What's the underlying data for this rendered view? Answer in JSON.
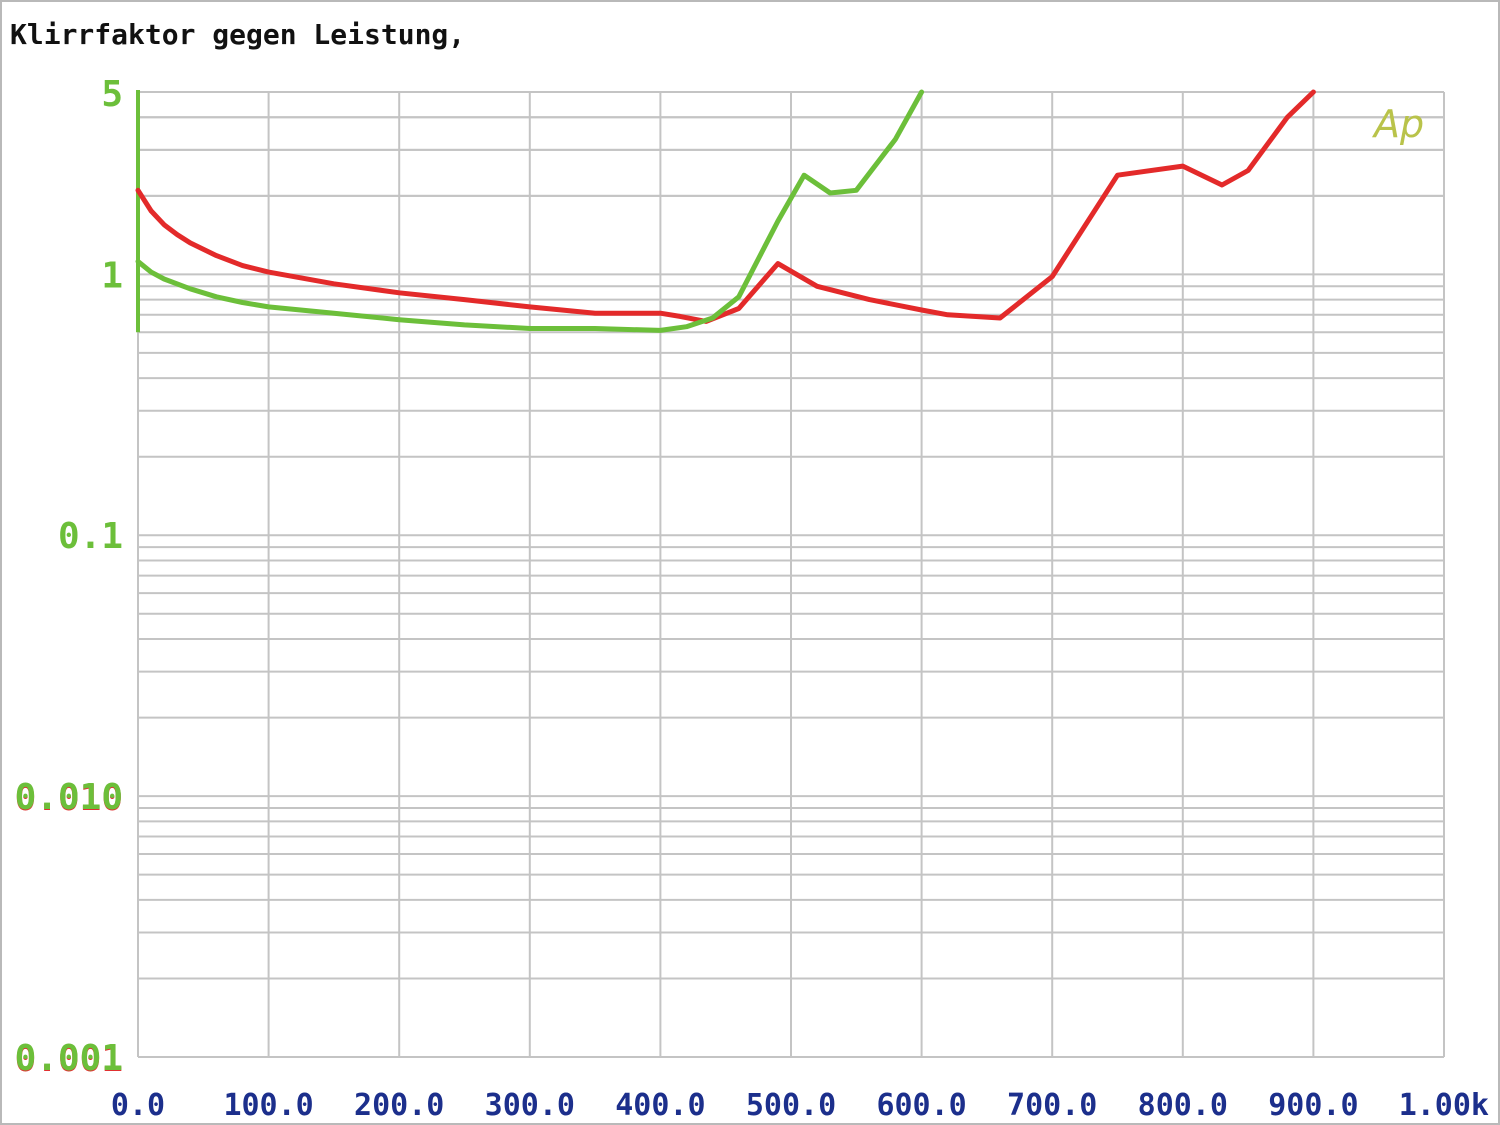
{
  "chart_data": {
    "type": "line",
    "title": "Klirrfaktor gegen Leistung,",
    "logo": "Ap",
    "x_ticks": [
      "0.0",
      "100.0",
      "200.0",
      "300.0",
      "400.0",
      "500.0",
      "600.0",
      "700.0",
      "800.0",
      "900.0",
      "1.00k"
    ],
    "y_ticks": [
      {
        "value": 5,
        "label": "5"
      },
      {
        "value": 1,
        "label": "1"
      },
      {
        "value": 0.1,
        "label": "0.1"
      },
      {
        "value": 0.01,
        "label": "0.010"
      },
      {
        "value": 0.001,
        "label": "0.001"
      }
    ],
    "xlim": [
      0,
      1000
    ],
    "ylim": [
      0.001,
      5
    ],
    "y_scale": "log",
    "grid": true,
    "colors": {
      "grid": "#c4c4c4",
      "axis": "#6cbf3a",
      "x_tick_text": "#1c2f8c",
      "y_tick_text": "#6cbf3a",
      "y_tick_shadow": "#e03030",
      "title": "#111111",
      "logo": "#b9c34a",
      "series_red": "#e32a2a",
      "series_green": "#6cbf3a"
    },
    "series": [
      {
        "color": "#e32a2a",
        "x": [
          0,
          10,
          20,
          30,
          40,
          60,
          80,
          100,
          150,
          200,
          250,
          300,
          350,
          400,
          415,
          435,
          460,
          490,
          520,
          560,
          600,
          620,
          660,
          700,
          750,
          800,
          830,
          850,
          880,
          900
        ],
        "y": [
          2.1,
          1.75,
          1.55,
          1.42,
          1.32,
          1.18,
          1.08,
          1.02,
          0.92,
          0.85,
          0.8,
          0.75,
          0.71,
          0.71,
          0.69,
          0.66,
          0.74,
          1.1,
          0.9,
          0.8,
          0.73,
          0.7,
          0.68,
          0.98,
          2.4,
          2.6,
          2.2,
          2.5,
          4.0,
          5.0
        ]
      },
      {
        "color": "#6cbf3a",
        "x": [
          0,
          10,
          20,
          40,
          60,
          80,
          100,
          150,
          200,
          250,
          300,
          350,
          400,
          420,
          440,
          460,
          490,
          510,
          530,
          550,
          580,
          600
        ],
        "y": [
          1.12,
          1.02,
          0.96,
          0.88,
          0.82,
          0.78,
          0.75,
          0.71,
          0.67,
          0.64,
          0.62,
          0.62,
          0.61,
          0.63,
          0.68,
          0.82,
          1.6,
          2.4,
          2.05,
          2.1,
          3.3,
          5.0
        ]
      }
    ]
  }
}
